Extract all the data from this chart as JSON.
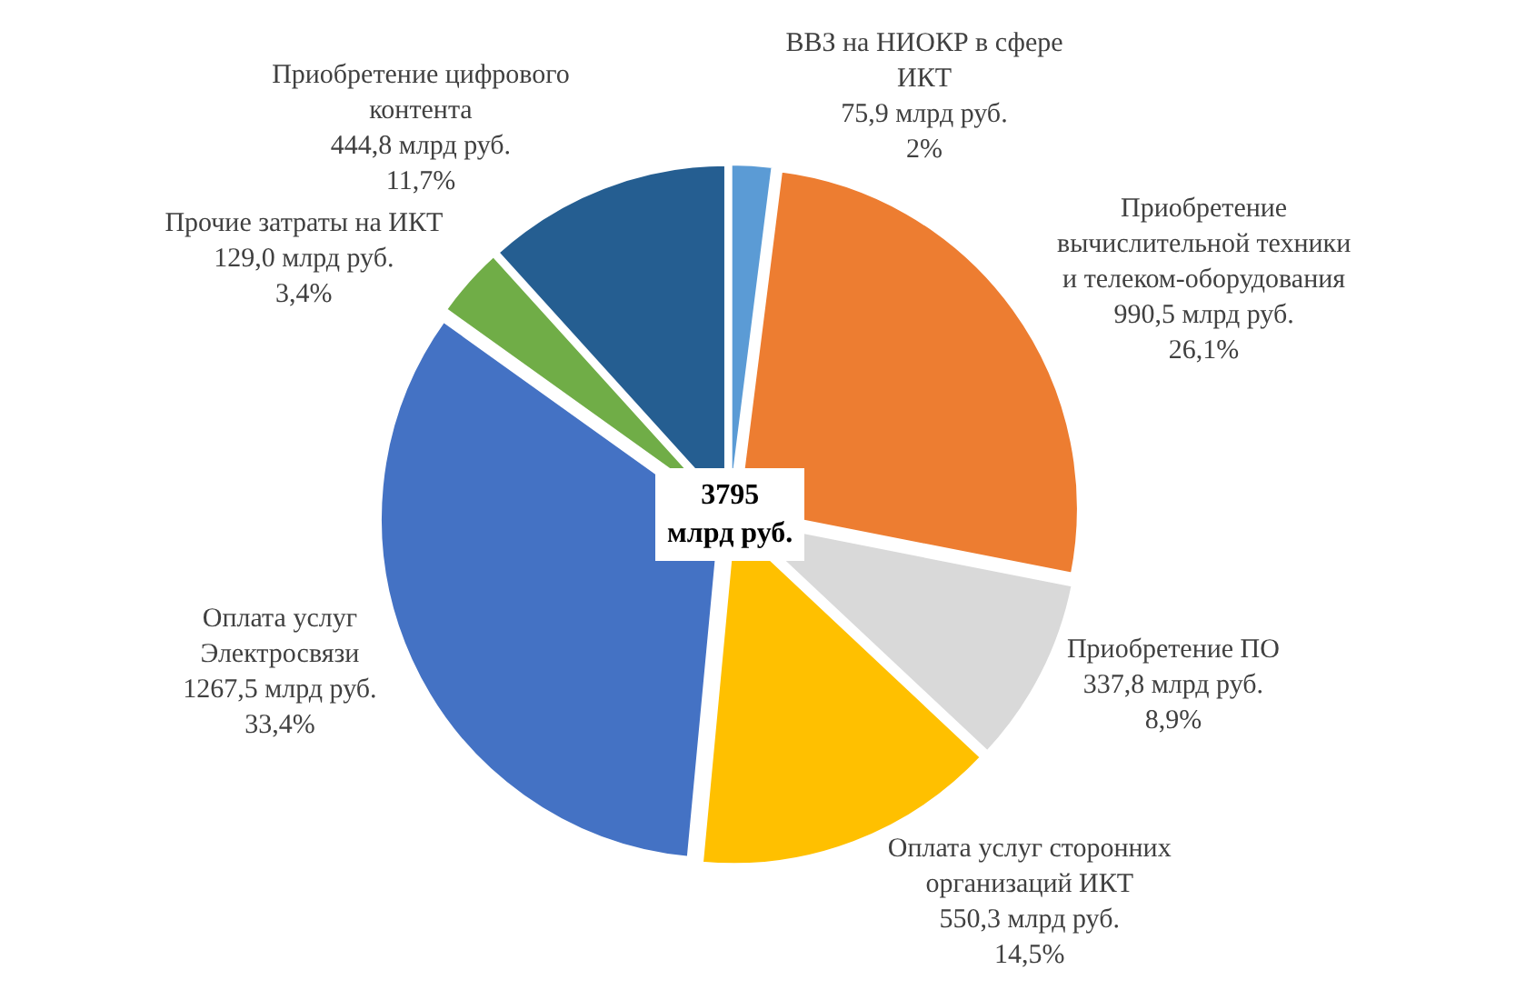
{
  "chart_data": {
    "type": "pie",
    "categories": [
      "ВВЗ на НИОКР в сфере ИКТ",
      "Приобретение вычислительной техники и телеком-оборудования",
      "Приобретение ПО",
      "Оплата услуг сторонних организаций ИКТ",
      "Оплата услуг Электросвязи",
      "Прочие затраты на ИКТ",
      "Приобретение цифрового контента"
    ],
    "values": [
      75.9,
      990.5,
      337.8,
      550.3,
      1267.5,
      129.0,
      444.8
    ],
    "value_labels": [
      "75,9 млрд руб.\n2%",
      "990,5 млрд руб.\n26,1%",
      "337,8 млрд руб.\n8,9%",
      "550,3 млрд руб.\n14,5%",
      "1267,5 млрд руб.\n33,4%",
      "129,0 млрд руб.\n3,4%",
      "444,8 млрд руб.\n11,7%"
    ],
    "colors": [
      "#5b9bd5",
      "#ed7d31",
      "#d9d9d9",
      "#ffc000",
      "#4472c4",
      "#70ad47",
      "#255e91"
    ],
    "annotations": [
      "3795\nмлрд руб."
    ],
    "legend": false
  }
}
